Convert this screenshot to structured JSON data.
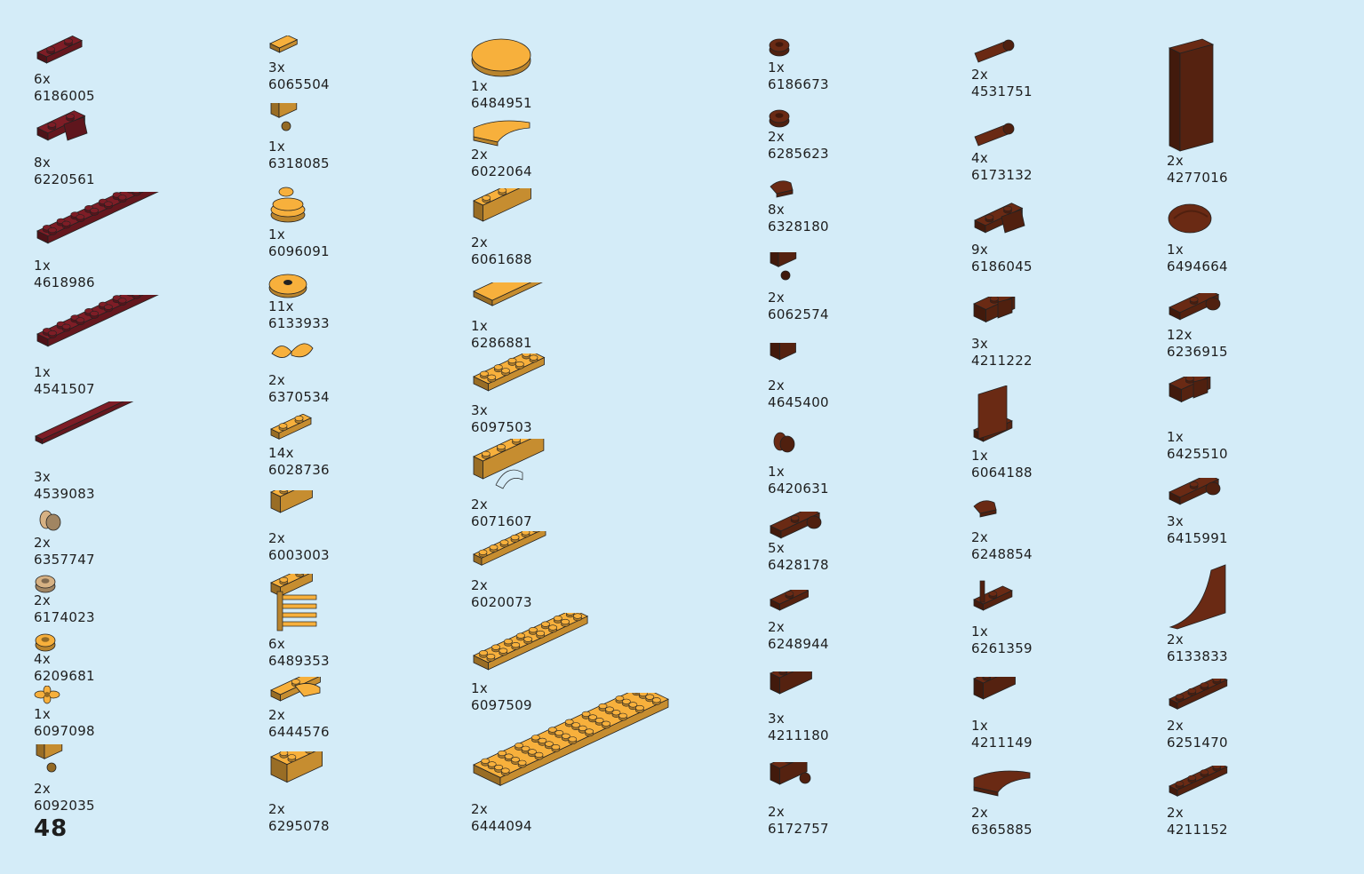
{
  "page_number": "48",
  "colors": {
    "background": "#d4ecf8",
    "dark_red": "#7e1d26",
    "bright_light_orange": "#f7b03c",
    "reddish_brown": "#6a2a14",
    "tan": "#d6b183"
  },
  "columns": [
    {
      "items": [
        {
          "qty": "6x",
          "code": "6186005",
          "color": "dark_red",
          "shape": "plate-small"
        },
        {
          "qty": "8x",
          "code": "6220561",
          "color": "dark_red",
          "shape": "bracket"
        },
        {
          "qty": "1x",
          "code": "4618986",
          "color": "dark_red",
          "shape": "plate-long"
        },
        {
          "qty": "1x",
          "code": "4541507",
          "color": "dark_red",
          "shape": "plate-long"
        },
        {
          "qty": "3x",
          "code": "4539083",
          "color": "dark_red",
          "shape": "tile-long"
        },
        {
          "qty": "2x",
          "code": "6357747",
          "color": "tan",
          "shape": "small-element"
        },
        {
          "qty": "2x",
          "code": "6174023",
          "color": "tan",
          "shape": "round-small"
        },
        {
          "qty": "4x",
          "code": "6209681",
          "color": "bright_light_orange",
          "shape": "round-small"
        },
        {
          "qty": "1x",
          "code": "6097098",
          "color": "bright_light_orange",
          "shape": "flower"
        },
        {
          "qty": "2x",
          "code": "6092035",
          "color": "bright_light_orange",
          "shape": "brick-stud"
        }
      ]
    },
    {
      "items": [
        {
          "qty": "3x",
          "code": "6065504",
          "color": "bright_light_orange",
          "shape": "tile-small"
        },
        {
          "qty": "1x",
          "code": "6318085",
          "color": "bright_light_orange",
          "shape": "brick-stud"
        },
        {
          "qty": "1x",
          "code": "6096091",
          "color": "bright_light_orange",
          "shape": "coins"
        },
        {
          "qty": "11x",
          "code": "6133933",
          "color": "bright_light_orange",
          "shape": "round-plate"
        },
        {
          "qty": "2x",
          "code": "6370534",
          "color": "bright_light_orange",
          "shape": "butterfly"
        },
        {
          "qty": "14x",
          "code": "6028736",
          "color": "bright_light_orange",
          "shape": "plate-1x2"
        },
        {
          "qty": "2x",
          "code": "6003003",
          "color": "bright_light_orange",
          "shape": "brick-1x2"
        },
        {
          "qty": "6x",
          "code": "6489353",
          "color": "bright_light_orange",
          "shape": "ladder"
        },
        {
          "qty": "2x",
          "code": "6444576",
          "color": "bright_light_orange",
          "shape": "plate-curved"
        },
        {
          "qty": "2x",
          "code": "6295078",
          "color": "bright_light_orange",
          "shape": "brick-2x2"
        }
      ]
    },
    {
      "items": [
        {
          "qty": "1x",
          "code": "6484951",
          "color": "bright_light_orange",
          "shape": "round-tile-large"
        },
        {
          "qty": "2x",
          "code": "6022064",
          "color": "bright_light_orange",
          "shape": "slope-curved"
        },
        {
          "qty": "2x",
          "code": "6061688",
          "color": "bright_light_orange",
          "shape": "brick-1x3"
        },
        {
          "qty": "1x",
          "code": "6286881",
          "color": "bright_light_orange",
          "shape": "tile-wide"
        },
        {
          "qty": "3x",
          "code": "6097503",
          "color": "bright_light_orange",
          "shape": "plate-2x4"
        },
        {
          "qty": "2x",
          "code": "6071607",
          "color": "bright_light_orange",
          "shape": "arch"
        },
        {
          "qty": "2x",
          "code": "6020073",
          "color": "bright_light_orange",
          "shape": "plate-1x6"
        },
        {
          "qty": "1x",
          "code": "6097509",
          "color": "bright_light_orange",
          "shape": "plate-2x8"
        },
        {
          "qty": "2x",
          "code": "6444094",
          "color": "bright_light_orange",
          "shape": "plate-4x10"
        }
      ]
    },
    {
      "items": [
        {
          "qty": "1x",
          "code": "6186673",
          "color": "reddish_brown",
          "shape": "round-small"
        },
        {
          "qty": "2x",
          "code": "6285623",
          "color": "reddish_brown",
          "shape": "round-small"
        },
        {
          "qty": "8x",
          "code": "6328180",
          "color": "reddish_brown",
          "shape": "tile-quarter"
        },
        {
          "qty": "2x",
          "code": "6062574",
          "color": "reddish_brown",
          "shape": "brick-stud"
        },
        {
          "qty": "2x",
          "code": "4645400",
          "color": "reddish_brown",
          "shape": "brick-corner"
        },
        {
          "qty": "1x",
          "code": "6420631",
          "color": "reddish_brown",
          "shape": "small-element"
        },
        {
          "qty": "5x",
          "code": "6428178",
          "color": "reddish_brown",
          "shape": "plate-clip"
        },
        {
          "qty": "2x",
          "code": "6248944",
          "color": "reddish_brown",
          "shape": "plate-round-end"
        },
        {
          "qty": "3x",
          "code": "4211180",
          "color": "reddish_brown",
          "shape": "brick-1x2"
        },
        {
          "qty": "2x",
          "code": "6172757",
          "color": "reddish_brown",
          "shape": "brick-clip"
        }
      ]
    },
    {
      "items": [
        {
          "qty": "2x",
          "code": "4531751",
          "color": "reddish_brown",
          "shape": "bar"
        },
        {
          "qty": "4x",
          "code": "6173132",
          "color": "reddish_brown",
          "shape": "bar"
        },
        {
          "qty": "9x",
          "code": "6186045",
          "color": "reddish_brown",
          "shape": "bracket"
        },
        {
          "qty": "3x",
          "code": "4211222",
          "color": "reddish_brown",
          "shape": "slope-inverted"
        },
        {
          "qty": "1x",
          "code": "6064188",
          "color": "reddish_brown",
          "shape": "panel"
        },
        {
          "qty": "2x",
          "code": "6248854",
          "color": "reddish_brown",
          "shape": "tile-quarter"
        },
        {
          "qty": "1x",
          "code": "6261359",
          "color": "reddish_brown",
          "shape": "plate-bar"
        },
        {
          "qty": "1x",
          "code": "4211149",
          "color": "reddish_brown",
          "shape": "brick-1x2"
        },
        {
          "qty": "2x",
          "code": "6365885",
          "color": "reddish_brown",
          "shape": "slope-curved"
        }
      ]
    },
    {
      "items": [
        {
          "qty": "2x",
          "code": "4277016",
          "color": "reddish_brown",
          "shape": "brick-tall"
        },
        {
          "qty": "1x",
          "code": "6494664",
          "color": "reddish_brown",
          "shape": "hair"
        },
        {
          "qty": "12x",
          "code": "6236915",
          "color": "reddish_brown",
          "shape": "plate-clip"
        },
        {
          "qty": "1x",
          "code": "6425510",
          "color": "reddish_brown",
          "shape": "slope-inverted"
        },
        {
          "qty": "3x",
          "code": "6415991",
          "color": "reddish_brown",
          "shape": "plate-clip"
        },
        {
          "qty": "2x",
          "code": "6133833",
          "color": "reddish_brown",
          "shape": "arch-curve"
        },
        {
          "qty": "2x",
          "code": "6251470",
          "color": "reddish_brown",
          "shape": "plate-1x4"
        },
        {
          "qty": "2x",
          "code": "4211152",
          "color": "reddish_brown",
          "shape": "plate-1x4"
        }
      ]
    }
  ]
}
